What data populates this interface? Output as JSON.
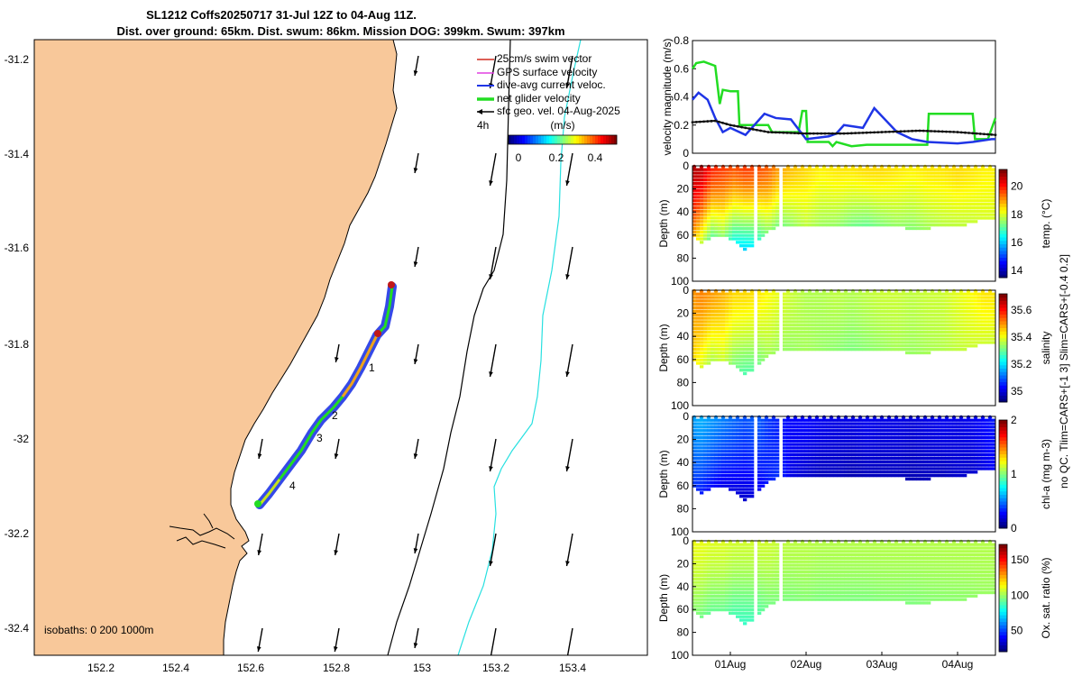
{
  "header": {
    "line1": "SL1212 Coffs20250717 31-Jul 12Z to 04-Aug 11Z.",
    "line2": "Dist. over ground: 65km. Dist. swum: 86km. Mission DOG: 399km. Swum: 397km"
  },
  "map": {
    "lat_ticks": [
      "-31.2",
      "-31.4",
      "-31.6",
      "-31.8",
      "-32",
      "-32.2",
      "-32.4"
    ],
    "lon_ticks": [
      "152.2",
      "152.4",
      "152.6",
      "152.8",
      "153",
      "153.2",
      "153.4"
    ],
    "legend": [
      {
        "label": "25cm/s swim vector",
        "color": "#d22a1e",
        "style": "thin-arrow"
      },
      {
        "label": "GPS surface velocity",
        "color": "#e040e0",
        "style": "thin-arrow"
      },
      {
        "label": "dive-avg current veloc.",
        "color": "#1f35e6",
        "style": "arrow"
      },
      {
        "label": "net glider velocity",
        "color": "#22dd22",
        "style": "thick-arrow"
      },
      {
        "label": "sfc geo. vel. 04-Aug-2025",
        "color": "#000000",
        "style": "arrow"
      }
    ],
    "time_step_label": "4h",
    "colorbar_title": "(m/s)",
    "colorbar_ticks": [
      "0",
      "0.2",
      "0.4"
    ],
    "track_labels": [
      "1",
      "2",
      "3",
      "4"
    ],
    "isobaths_label": "isobaths: 0   200  1000m",
    "colors": {
      "land": "#f8c89a",
      "isobath_200": "#000000",
      "isobath_1000": "#27e0e0"
    }
  },
  "chart_data": [
    {
      "type": "line",
      "title": "",
      "xlabel": "",
      "ylabel": "velocity magnitude (m/s)",
      "ylim": [
        0,
        0.8
      ],
      "yticks": [
        "0",
        "0.2",
        "0.4",
        "0.6",
        "0.8"
      ],
      "x_unit": "days since 31-Jul 00Z",
      "xlim": [
        0.5,
        4.5
      ],
      "series": [
        {
          "name": "net glider velocity",
          "color": "#22dd22",
          "x": [
            0.5,
            0.55,
            0.65,
            0.8,
            0.86,
            0.9,
            1.0,
            1.1,
            1.12,
            1.5,
            1.55,
            1.9,
            1.95,
            2.0,
            2.02,
            2.3,
            2.35,
            2.4,
            2.6,
            2.8,
            3.2,
            3.6,
            3.62,
            4.0,
            4.2,
            4.23,
            4.3,
            4.4,
            4.5
          ],
          "y": [
            0.6,
            0.64,
            0.65,
            0.62,
            0.35,
            0.45,
            0.44,
            0.44,
            0.2,
            0.2,
            0.15,
            0.15,
            0.3,
            0.3,
            0.08,
            0.08,
            0.05,
            0.08,
            0.05,
            0.06,
            0.06,
            0.06,
            0.28,
            0.28,
            0.28,
            0.1,
            0.1,
            0.1,
            0.25
          ]
        },
        {
          "name": "dive-avg current veloc.",
          "color": "#1f35e6",
          "x": [
            0.5,
            0.58,
            0.7,
            0.8,
            0.9,
            1.0,
            1.2,
            1.45,
            1.6,
            1.8,
            2.0,
            2.3,
            2.4,
            2.5,
            2.75,
            2.9,
            3.2,
            3.4,
            3.6,
            4.0,
            4.2,
            4.45,
            4.5
          ],
          "y": [
            0.38,
            0.43,
            0.38,
            0.25,
            0.15,
            0.18,
            0.13,
            0.28,
            0.25,
            0.24,
            0.1,
            0.12,
            0.14,
            0.2,
            0.18,
            0.32,
            0.15,
            0.1,
            0.08,
            0.07,
            0.08,
            0.1,
            0.1
          ]
        },
        {
          "name": "sfc geo. vel.",
          "color": "#111111",
          "x": [
            0.5,
            0.8,
            1.0,
            1.5,
            2.0,
            2.5,
            3.0,
            3.5,
            4.0,
            4.5
          ],
          "y": [
            0.22,
            0.23,
            0.2,
            0.15,
            0.14,
            0.14,
            0.15,
            0.16,
            0.15,
            0.13
          ]
        }
      ]
    },
    {
      "type": "heatmap",
      "ylabel": "Depth (m)",
      "colorbar_label": "temp. (°C)",
      "colorbar_ticks": [
        "14",
        "16",
        "18",
        "20"
      ],
      "clim": [
        13.5,
        21.2
      ],
      "ylim": [
        0,
        100
      ],
      "yticks": [
        "0",
        "20",
        "40",
        "60",
        "80",
        "100"
      ],
      "x_days": [
        0.5,
        0.6,
        0.75,
        0.9,
        1.05,
        1.2,
        1.35,
        1.5,
        1.65,
        1.8,
        2.0,
        2.2,
        2.4,
        2.6,
        2.8,
        3.0,
        3.2,
        3.4,
        3.6,
        3.8,
        4.0,
        4.2,
        4.35,
        4.5
      ],
      "max_depth_m": [
        60,
        66,
        62,
        60,
        64,
        72,
        66,
        56,
        52,
        50,
        52,
        50,
        52,
        50,
        50,
        50,
        52,
        54,
        54,
        50,
        52,
        48,
        46,
        44
      ],
      "surface_value": [
        20.8,
        20.8,
        20.0,
        19.8,
        19.6,
        19.8,
        19.7,
        19.5,
        19.0,
        18.8,
        18.6,
        18.4,
        18.5,
        18.5,
        18.6,
        18.6,
        18.5,
        18.4,
        18.5,
        18.5,
        18.6,
        18.5,
        18.4,
        18.4
      ],
      "bottom_value": [
        19.0,
        18.0,
        17.0,
        17.5,
        16.5,
        16.0,
        16.5,
        17.5,
        17.2,
        17.5,
        17.8,
        17.6,
        17.5,
        17.3,
        17.2,
        17.4,
        17.5,
        17.4,
        17.6,
        17.8,
        17.8,
        17.9,
        18.0,
        18.0
      ],
      "gap_days": [
        [
          1.33,
          1.38
        ],
        [
          1.63,
          1.67
        ]
      ]
    },
    {
      "type": "heatmap",
      "ylabel": "Depth (m)",
      "colorbar_label": "salinity",
      "colorbar_ticks": [
        "35",
        "35.2",
        "35.4",
        "35.6"
      ],
      "clim": [
        34.92,
        35.72
      ],
      "ylim": [
        0,
        100
      ],
      "yticks": [
        "0",
        "20",
        "40",
        "60",
        "80",
        "100"
      ],
      "x_days": [
        0.5,
        0.6,
        0.75,
        0.9,
        1.05,
        1.2,
        1.35,
        1.5,
        1.65,
        1.8,
        2.0,
        2.2,
        2.4,
        2.6,
        2.8,
        3.0,
        3.2,
        3.4,
        3.6,
        3.8,
        4.0,
        4.2,
        4.35,
        4.5
      ],
      "max_depth_m": [
        60,
        66,
        62,
        60,
        64,
        72,
        66,
        56,
        52,
        50,
        52,
        50,
        52,
        50,
        50,
        50,
        52,
        54,
        54,
        50,
        52,
        48,
        46,
        44
      ],
      "surface_value": [
        35.5,
        35.52,
        35.5,
        35.48,
        35.45,
        35.45,
        35.44,
        35.42,
        35.4,
        35.38,
        35.36,
        35.36,
        35.37,
        35.36,
        35.37,
        35.38,
        35.38,
        35.37,
        35.38,
        35.38,
        35.4,
        35.42,
        35.44,
        35.44
      ],
      "bottom_value": [
        35.45,
        35.4,
        35.35,
        35.38,
        35.32,
        35.28,
        35.3,
        35.35,
        35.34,
        35.34,
        35.35,
        35.34,
        35.33,
        35.32,
        35.33,
        35.34,
        35.35,
        35.34,
        35.35,
        35.36,
        35.37,
        35.38,
        35.38,
        35.38
      ],
      "gap_days": [
        [
          1.33,
          1.38
        ],
        [
          1.63,
          1.67
        ]
      ]
    },
    {
      "type": "heatmap",
      "ylabel": "Depth (m)",
      "colorbar_label": "chl-a (mg m-3)",
      "colorbar_ticks": [
        "0",
        "1",
        "2"
      ],
      "clim": [
        0,
        2
      ],
      "ylim": [
        0,
        100
      ],
      "yticks": [
        "0",
        "20",
        "40",
        "60",
        "80",
        "100"
      ],
      "x_days": [
        0.5,
        0.6,
        0.75,
        0.9,
        1.05,
        1.2,
        1.35,
        1.5,
        1.65,
        1.8,
        2.0,
        2.2,
        2.4,
        2.6,
        2.8,
        3.0,
        3.2,
        3.4,
        3.6,
        3.8,
        4.0,
        4.2,
        4.35,
        4.5
      ],
      "max_depth_m": [
        60,
        66,
        62,
        60,
        64,
        72,
        66,
        56,
        52,
        50,
        52,
        50,
        52,
        50,
        50,
        50,
        52,
        54,
        54,
        50,
        52,
        48,
        46,
        44
      ],
      "surface_value": [
        0.55,
        0.6,
        0.55,
        0.5,
        0.45,
        0.4,
        0.45,
        0.35,
        0.3,
        0.25,
        0.25,
        0.22,
        0.2,
        0.2,
        0.22,
        0.2,
        0.2,
        0.18,
        0.2,
        0.22,
        0.2,
        0.22,
        0.25,
        0.3
      ],
      "bottom_value": [
        0.35,
        0.3,
        0.25,
        0.2,
        0.18,
        0.15,
        0.2,
        0.3,
        0.35,
        0.2,
        0.15,
        0.12,
        0.12,
        0.1,
        0.12,
        0.12,
        0.12,
        0.1,
        0.12,
        0.12,
        0.15,
        0.15,
        0.2,
        0.25
      ],
      "gap_days": [
        [
          1.33,
          1.38
        ],
        [
          1.63,
          1.67
        ]
      ]
    },
    {
      "type": "heatmap",
      "ylabel": "Depth (m)",
      "colorbar_label": "Ox. sat. ratio (%)",
      "colorbar_ticks": [
        "50",
        "100",
        "150"
      ],
      "clim": [
        20,
        172
      ],
      "ylim": [
        0,
        100
      ],
      "yticks": [
        "0",
        "20",
        "40",
        "60",
        "80",
        "100"
      ],
      "xticks": [
        "01Aug",
        "02Aug",
        "03Aug",
        "04Aug"
      ],
      "x_days": [
        0.5,
        0.6,
        0.75,
        0.9,
        1.05,
        1.2,
        1.35,
        1.5,
        1.65,
        1.8,
        2.0,
        2.2,
        2.4,
        2.6,
        2.8,
        3.0,
        3.2,
        3.4,
        3.6,
        3.8,
        4.0,
        4.2,
        4.35,
        4.5
      ],
      "max_depth_m": [
        60,
        66,
        62,
        60,
        64,
        72,
        66,
        56,
        52,
        50,
        52,
        50,
        52,
        50,
        50,
        50,
        52,
        54,
        54,
        50,
        52,
        48,
        46,
        44
      ],
      "surface_value": [
        112,
        112,
        110,
        110,
        108,
        108,
        108,
        108,
        106,
        105,
        105,
        104,
        104,
        104,
        104,
        104,
        104,
        104,
        104,
        104,
        104,
        104,
        104,
        104
      ],
      "bottom_value": [
        98,
        95,
        92,
        93,
        88,
        85,
        88,
        95,
        96,
        96,
        97,
        96,
        96,
        96,
        96,
        97,
        97,
        96,
        97,
        98,
        98,
        99,
        100,
        100
      ],
      "gap_days": [
        [
          1.33,
          1.38
        ],
        [
          1.63,
          1.67
        ]
      ]
    }
  ],
  "side_note": "no QC. Tlim=CARS+[-1 3] Slim=CARS+[-0.4 0.2]"
}
